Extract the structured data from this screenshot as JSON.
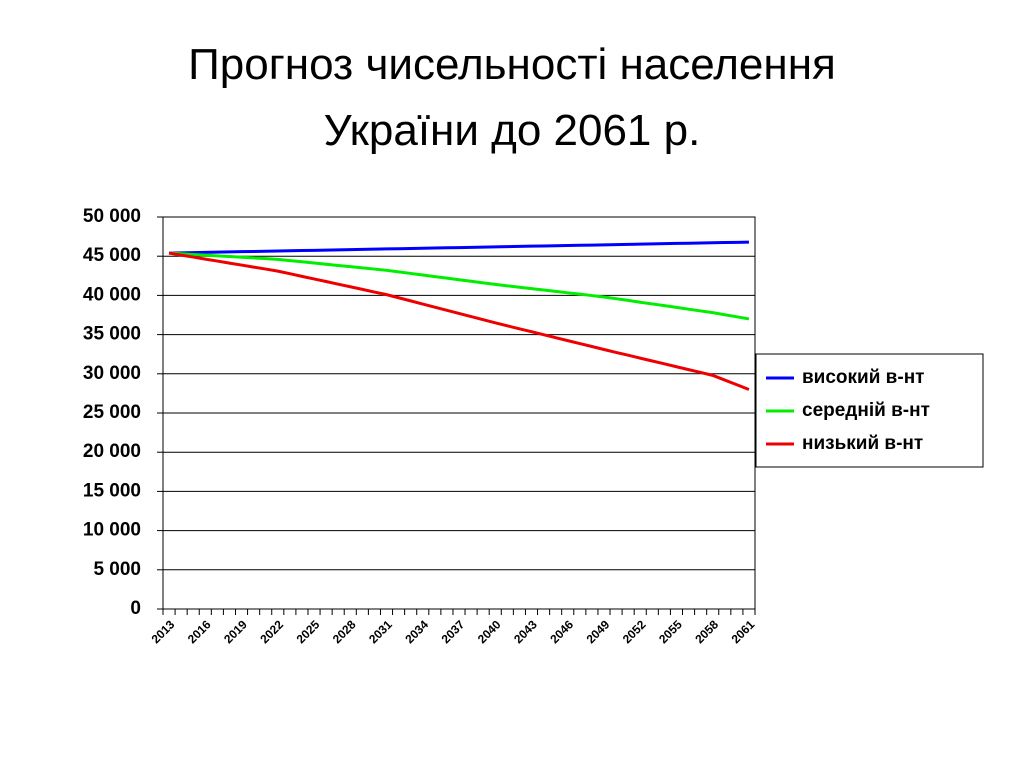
{
  "chart_data": {
    "type": "line",
    "title": "Прогноз чисельності населення України до 2061 р.",
    "categories": [
      "2013",
      null,
      null,
      "2016",
      null,
      null,
      "2019",
      null,
      null,
      "2022",
      null,
      null,
      "2025",
      null,
      null,
      "2028",
      null,
      null,
      "2031",
      null,
      null,
      "2034",
      null,
      null,
      "2037",
      null,
      null,
      "2040",
      null,
      null,
      "2043",
      null,
      null,
      "2046",
      null,
      null,
      "2049",
      null,
      null,
      "2052",
      null,
      null,
      "2055",
      null,
      null,
      "2058",
      null,
      null,
      "2061"
    ],
    "series": [
      {
        "name": "високий в-нт",
        "color": "#0000ff",
        "values": [
          45400,
          45430,
          45460,
          45490,
          45520,
          45550,
          45580,
          45600,
          45630,
          45660,
          45690,
          45720,
          45750,
          45780,
          45810,
          45840,
          45870,
          45900,
          45930,
          45950,
          45980,
          46010,
          46040,
          46070,
          46100,
          46130,
          46160,
          46190,
          46220,
          46250,
          46280,
          46300,
          46330,
          46360,
          46390,
          46420,
          46450,
          46480,
          46510,
          46540,
          46570,
          46600,
          46630,
          46650,
          46680,
          46710,
          46740,
          46770,
          46800
        ]
      },
      {
        "name": "середній в-нт",
        "color": "#00ee00",
        "values": [
          45400,
          45310,
          45220,
          45130,
          45040,
          44960,
          44870,
          44780,
          44690,
          44600,
          44440,
          44290,
          44130,
          43980,
          43820,
          43670,
          43510,
          43360,
          43200,
          43000,
          42800,
          42600,
          42400,
          42200,
          42000,
          41800,
          41600,
          41400,
          41220,
          41040,
          40870,
          40690,
          40510,
          40330,
          40160,
          39980,
          39800,
          39580,
          39360,
          39130,
          38910,
          38690,
          38470,
          38240,
          38020,
          37800,
          37530,
          37270,
          37000
        ]
      },
      {
        "name": "низький в-нт",
        "color": "#ee0000",
        "values": [
          45400,
          45140,
          44890,
          44630,
          44380,
          44120,
          43870,
          43610,
          43360,
          43100,
          42770,
          42430,
          42100,
          41770,
          41430,
          41100,
          40770,
          40430,
          40100,
          39700,
          39300,
          38900,
          38500,
          38100,
          37700,
          37300,
          36900,
          36500,
          36120,
          35740,
          35370,
          34990,
          34610,
          34230,
          33860,
          33480,
          33100,
          32730,
          32370,
          32000,
          31630,
          31270,
          30900,
          30530,
          30170,
          29800,
          29200,
          28600,
          28000
        ]
      }
    ],
    "ylim": [
      0,
      50000
    ],
    "yticks": [
      0,
      {
        "value": 5000,
        "label": "5 000"
      },
      {
        "value": 10000,
        "label": "10 000"
      },
      {
        "value": 15000,
        "label": "15 000"
      },
      {
        "value": 20000,
        "label": "20 000"
      },
      {
        "value": 25000,
        "label": "25 000"
      },
      {
        "value": 30000,
        "label": "30 000"
      },
      {
        "value": 35000,
        "label": "35 000"
      },
      {
        "value": 40000,
        "label": "40 000"
      },
      {
        "value": 45000,
        "label": "45 000"
      },
      {
        "value": 50000,
        "label": "50 000"
      }
    ],
    "grid": true,
    "legend": "right"
  }
}
